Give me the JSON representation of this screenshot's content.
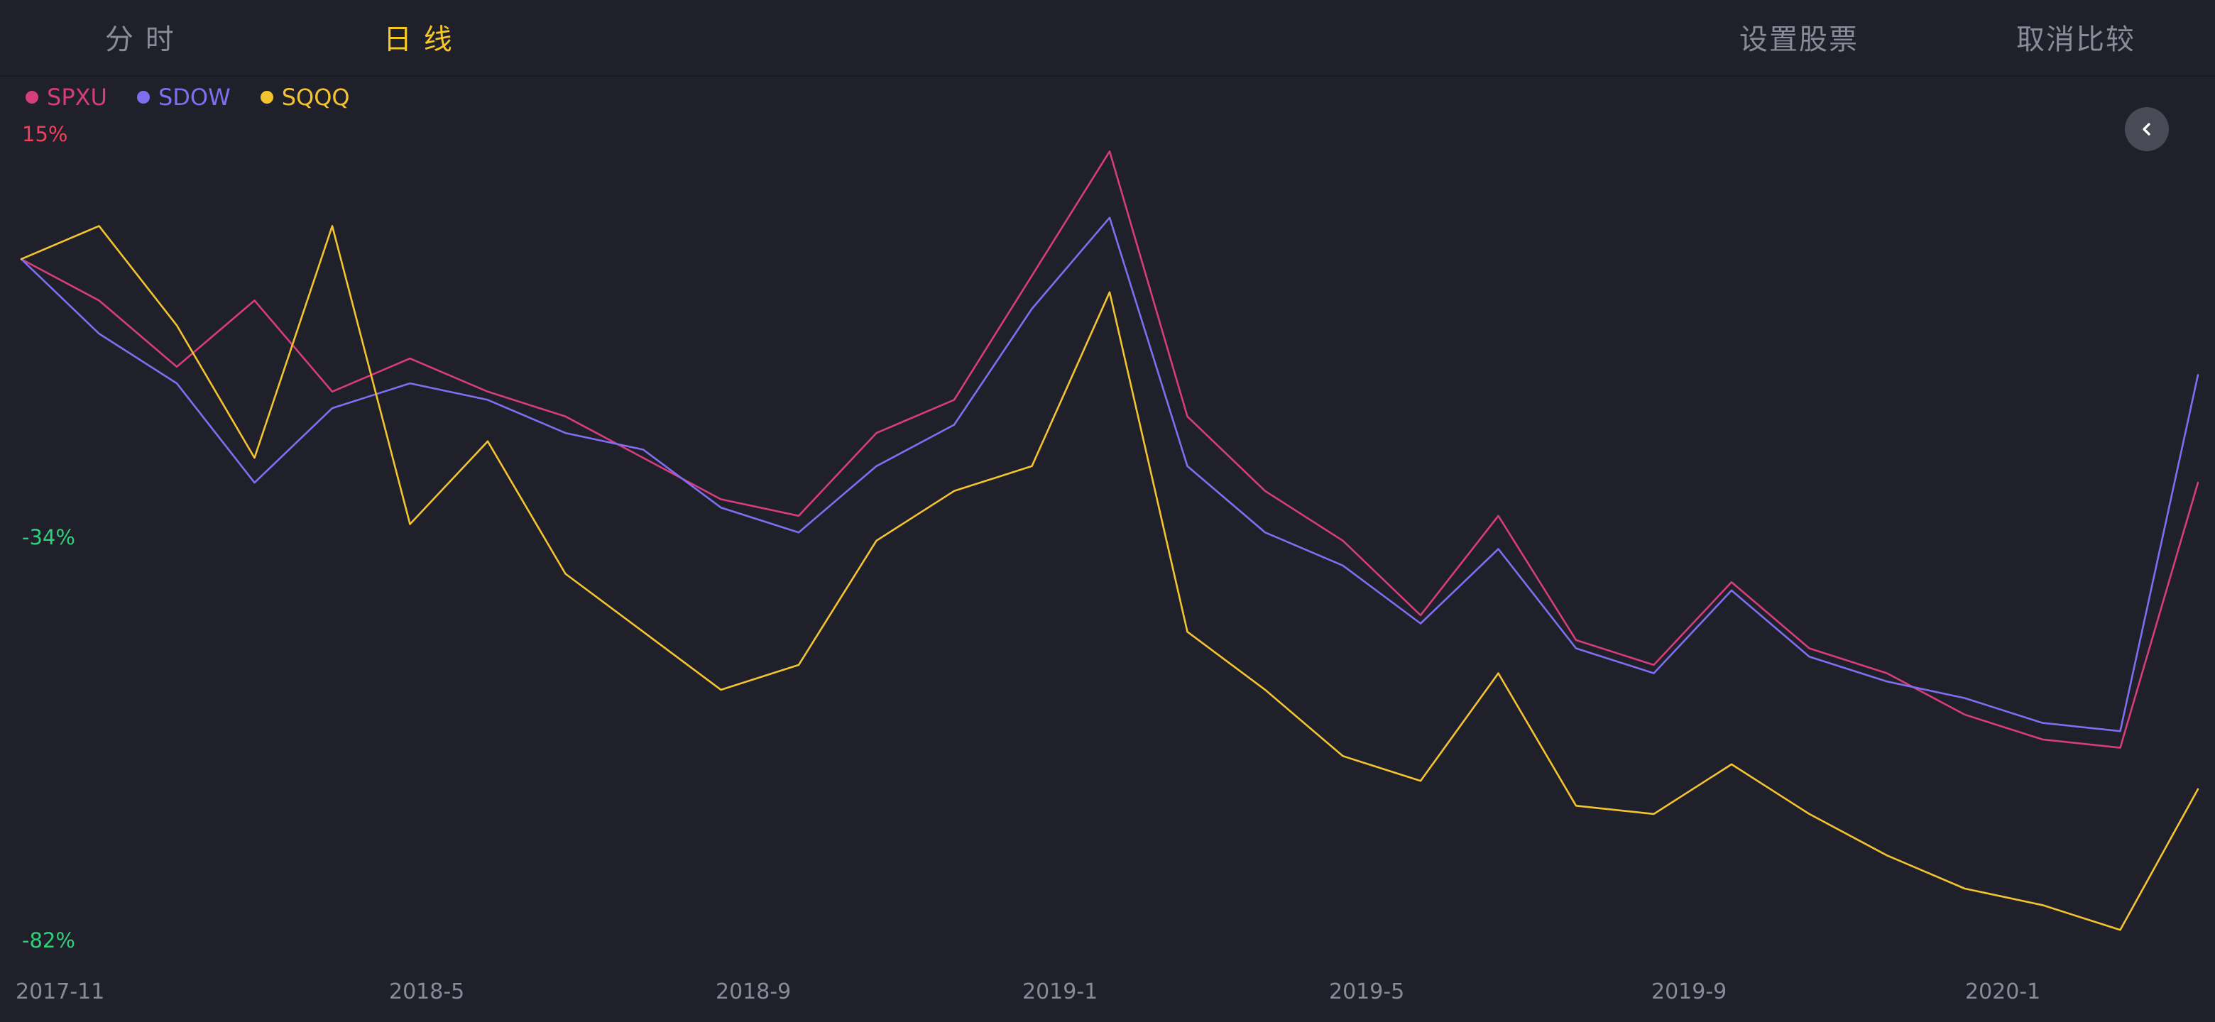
{
  "tabs": {
    "intraday": "分 时",
    "daily": "日 线"
  },
  "actions": {
    "set_stocks": "设置股票",
    "cancel_compare": "取消比较"
  },
  "colors": {
    "background": "#20202b",
    "active_tab": "#f5c827",
    "inactive_text": "#8a8a99",
    "positive_label": "#f0405a",
    "negative_label": "#2ed07a"
  },
  "icons": {
    "collapse": "chevron-left-icon"
  },
  "chart_data": {
    "type": "line",
    "y_unit": "%",
    "ylim": [
      -82,
      15
    ],
    "y_ticks": [
      {
        "value": 15,
        "label": "15%"
      },
      {
        "value": -34,
        "label": "-34%"
      },
      {
        "value": -82,
        "label": "-82%"
      }
    ],
    "x_ticks": [
      {
        "x": "2017-11",
        "label": "2017-11"
      },
      {
        "x": "2018-05",
        "label": "2018-5"
      },
      {
        "x": "2018-09",
        "label": "2018-9"
      },
      {
        "x": "2019-01",
        "label": "2019-1"
      },
      {
        "x": "2019-05",
        "label": "2019-5"
      },
      {
        "x": "2019-09",
        "label": "2019-9"
      },
      {
        "x": "2020-01",
        "label": "2020-1"
      }
    ],
    "xlim": [
      "2017-11",
      "2020-03"
    ],
    "grid": false,
    "legend_position": "top-left",
    "series": [
      {
        "name": "SPXU",
        "color": "#d63d7d",
        "points": [
          [
            "2017-11",
            0
          ],
          [
            "2017-12",
            -5
          ],
          [
            "2018-01",
            -13
          ],
          [
            "2018-02",
            -5
          ],
          [
            "2018-03",
            -16
          ],
          [
            "2018-04",
            -12
          ],
          [
            "2018-05",
            -16
          ],
          [
            "2018-06",
            -19
          ],
          [
            "2018-07",
            -24
          ],
          [
            "2018-08",
            -29
          ],
          [
            "2018-09",
            -31
          ],
          [
            "2018-10",
            -21
          ],
          [
            "2018-11",
            -17
          ],
          [
            "2018-12",
            -2
          ],
          [
            "2019-01",
            13
          ],
          [
            "2019-02",
            -19
          ],
          [
            "2019-03",
            -28
          ],
          [
            "2019-04",
            -34
          ],
          [
            "2019-05",
            -43
          ],
          [
            "2019-06",
            -31
          ],
          [
            "2019-07",
            -46
          ],
          [
            "2019-08",
            -49
          ],
          [
            "2019-09",
            -39
          ],
          [
            "2019-10",
            -47
          ],
          [
            "2019-11",
            -50
          ],
          [
            "2019-12",
            -55
          ],
          [
            "2020-01",
            -58
          ],
          [
            "2020-02",
            -59
          ],
          [
            "2020-03",
            -27
          ]
        ]
      },
      {
        "name": "SDOW",
        "color": "#7f6ff0",
        "points": [
          [
            "2017-11",
            0
          ],
          [
            "2017-12",
            -9
          ],
          [
            "2018-01",
            -15
          ],
          [
            "2018-02",
            -27
          ],
          [
            "2018-03",
            -18
          ],
          [
            "2018-04",
            -15
          ],
          [
            "2018-05",
            -17
          ],
          [
            "2018-06",
            -21
          ],
          [
            "2018-07",
            -23
          ],
          [
            "2018-08",
            -30
          ],
          [
            "2018-09",
            -33
          ],
          [
            "2018-10",
            -25
          ],
          [
            "2018-11",
            -20
          ],
          [
            "2018-12",
            -6
          ],
          [
            "2019-01",
            5
          ],
          [
            "2019-02",
            -25
          ],
          [
            "2019-03",
            -33
          ],
          [
            "2019-04",
            -37
          ],
          [
            "2019-05",
            -44
          ],
          [
            "2019-06",
            -35
          ],
          [
            "2019-07",
            -47
          ],
          [
            "2019-08",
            -50
          ],
          [
            "2019-09",
            -40
          ],
          [
            "2019-10",
            -48
          ],
          [
            "2019-11",
            -51
          ],
          [
            "2019-12",
            -53
          ],
          [
            "2020-01",
            -56
          ],
          [
            "2020-02",
            -57
          ],
          [
            "2020-03",
            -14
          ]
        ]
      },
      {
        "name": "SQQQ",
        "color": "#f4c430",
        "points": [
          [
            "2017-11",
            0
          ],
          [
            "2017-12",
            4
          ],
          [
            "2018-01",
            -8
          ],
          [
            "2018-02",
            -24
          ],
          [
            "2018-03",
            4
          ],
          [
            "2018-04",
            -32
          ],
          [
            "2018-05",
            -22
          ],
          [
            "2018-06",
            -38
          ],
          [
            "2018-07",
            -45
          ],
          [
            "2018-08",
            -52
          ],
          [
            "2018-09",
            -49
          ],
          [
            "2018-10",
            -34
          ],
          [
            "2018-11",
            -28
          ],
          [
            "2018-12",
            -25
          ],
          [
            "2019-01",
            -4
          ],
          [
            "2019-02",
            -45
          ],
          [
            "2019-03",
            -52
          ],
          [
            "2019-04",
            -60
          ],
          [
            "2019-05",
            -63
          ],
          [
            "2019-06",
            -50
          ],
          [
            "2019-07",
            -66
          ],
          [
            "2019-08",
            -67
          ],
          [
            "2019-09",
            -61
          ],
          [
            "2019-10",
            -67
          ],
          [
            "2019-11",
            -72
          ],
          [
            "2019-12",
            -76
          ],
          [
            "2020-01",
            -78
          ],
          [
            "2020-02",
            -81
          ],
          [
            "2020-03",
            -64
          ]
        ]
      }
    ]
  }
}
